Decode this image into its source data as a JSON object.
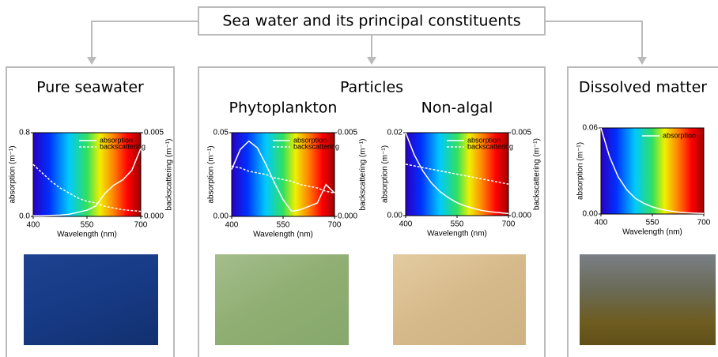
{
  "diagram": {
    "title": "Sea water and its principal constituents",
    "particles_title": "Particles"
  },
  "chart_data": [
    {
      "type": "line",
      "title": "Pure seawater",
      "xlabel": "Wavelength (nm)",
      "ylabel": "absorption (m⁻¹)",
      "y2label": "backscattering (m⁻¹)",
      "x": [
        400,
        425,
        450,
        475,
        500,
        525,
        550,
        575,
        600,
        625,
        650,
        675,
        700
      ],
      "xlim": [
        400,
        700
      ],
      "xticks": [
        400,
        550,
        700
      ],
      "ylim": [
        0,
        0.8
      ],
      "yticks": [
        {
          "value": 0,
          "label": "0.0"
        },
        {
          "value": 0.8,
          "label": "0.8"
        }
      ],
      "y2lim": [
        0,
        0.005
      ],
      "y2ticks": [
        {
          "value": 0,
          "label": "0.000"
        },
        {
          "value": 0.005,
          "label": "0.005"
        }
      ],
      "legend": "top-right",
      "series": [
        {
          "name": "absorption",
          "color": "#ffffff",
          "line_style": "solid",
          "values": [
            0.006,
            0.005,
            0.009,
            0.012,
            0.02,
            0.04,
            0.06,
            0.1,
            0.22,
            0.3,
            0.35,
            0.44,
            0.65
          ]
        },
        {
          "name": "backscattering",
          "color": "#ffffff",
          "line_style": "dashed",
          "axis": "y2",
          "values": [
            0.0031,
            0.0026,
            0.0021,
            0.0017,
            0.0014,
            0.0011,
            0.0009,
            0.0008,
            0.0006,
            0.0005,
            0.0004,
            0.00035,
            0.0003
          ]
        }
      ]
    },
    {
      "type": "line",
      "title": "Phytoplankton",
      "xlabel": "Wavelength (nm)",
      "ylabel": "absorption (m⁻¹)",
      "y2label": "backscattering (m⁻¹)",
      "x": [
        400,
        425,
        450,
        475,
        500,
        525,
        550,
        575,
        600,
        625,
        650,
        675,
        700
      ],
      "xlim": [
        400,
        700
      ],
      "xticks": [
        400,
        550,
        700
      ],
      "ylim": [
        0,
        0.05
      ],
      "yticks": [
        {
          "value": 0,
          "label": "0.00"
        },
        {
          "value": 0.05,
          "label": "0.05"
        }
      ],
      "y2lim": [
        0,
        0.005
      ],
      "y2ticks": [
        {
          "value": 0,
          "label": "0.000"
        },
        {
          "value": 0.005,
          "label": "0.005"
        }
      ],
      "legend": "top-right",
      "series": [
        {
          "name": "absorption",
          "color": "#ffffff",
          "line_style": "solid",
          "values": [
            0.028,
            0.04,
            0.045,
            0.041,
            0.031,
            0.02,
            0.01,
            0.003,
            0.004,
            0.006,
            0.008,
            0.019,
            0.014
          ]
        },
        {
          "name": "backscattering",
          "color": "#ffffff",
          "line_style": "dashed",
          "axis": "y2",
          "values": [
            0.003,
            0.0029,
            0.0027,
            0.0026,
            0.0025,
            0.0023,
            0.0022,
            0.0021,
            0.0019,
            0.0018,
            0.0017,
            0.0015,
            0.0014
          ]
        }
      ]
    },
    {
      "type": "line",
      "title": "Non-algal",
      "xlabel": "Wavelength (nm)",
      "ylabel": "absorption (m⁻¹)",
      "y2label": "backscattering (m⁻¹)",
      "x": [
        400,
        425,
        450,
        475,
        500,
        525,
        550,
        575,
        600,
        625,
        650,
        675,
        700
      ],
      "xlim": [
        400,
        700
      ],
      "xticks": [
        400,
        550,
        700
      ],
      "ylim": [
        0,
        0.02
      ],
      "yticks": [
        {
          "value": 0,
          "label": "0.00"
        },
        {
          "value": 0.02,
          "label": "0.02"
        }
      ],
      "y2lim": [
        0,
        0.005
      ],
      "y2ticks": [
        {
          "value": 0,
          "label": "0.000"
        },
        {
          "value": 0.005,
          "label": "0.005"
        }
      ],
      "legend": "top-right",
      "series": [
        {
          "name": "absorption",
          "color": "#ffffff",
          "line_style": "solid",
          "values": [
            0.02,
            0.0147,
            0.0108,
            0.0079,
            0.0058,
            0.0043,
            0.0031,
            0.0023,
            0.0017,
            0.0012,
            0.0009,
            0.0007,
            0.0005
          ]
        },
        {
          "name": "backscattering",
          "color": "#ffffff",
          "line_style": "dashed",
          "axis": "y2",
          "values": [
            0.0031,
            0.003,
            0.0029,
            0.0028,
            0.0027,
            0.0026,
            0.0025,
            0.0024,
            0.0023,
            0.0022,
            0.0021,
            0.002,
            0.0019
          ]
        }
      ]
    },
    {
      "type": "line",
      "title": "Dissolved matter",
      "xlabel": "Wavelength (nm)",
      "ylabel": "absorption (m⁻¹)",
      "x": [
        400,
        425,
        450,
        475,
        500,
        525,
        550,
        575,
        600,
        625,
        650,
        675,
        700
      ],
      "xlim": [
        400,
        700
      ],
      "xticks": [
        400,
        550,
        700
      ],
      "ylim": [
        0,
        0.06
      ],
      "yticks": [
        {
          "value": 0,
          "label": "0.00"
        },
        {
          "value": 0.06,
          "label": "0.06"
        }
      ],
      "legend": "top-right",
      "series": [
        {
          "name": "absorption",
          "color": "#ffffff",
          "line_style": "solid",
          "values": [
            0.06,
            0.04,
            0.026,
            0.017,
            0.011,
            0.0075,
            0.005,
            0.0033,
            0.0022,
            0.0014,
            0.0009,
            0.0006,
            0.0004
          ]
        }
      ]
    }
  ]
}
